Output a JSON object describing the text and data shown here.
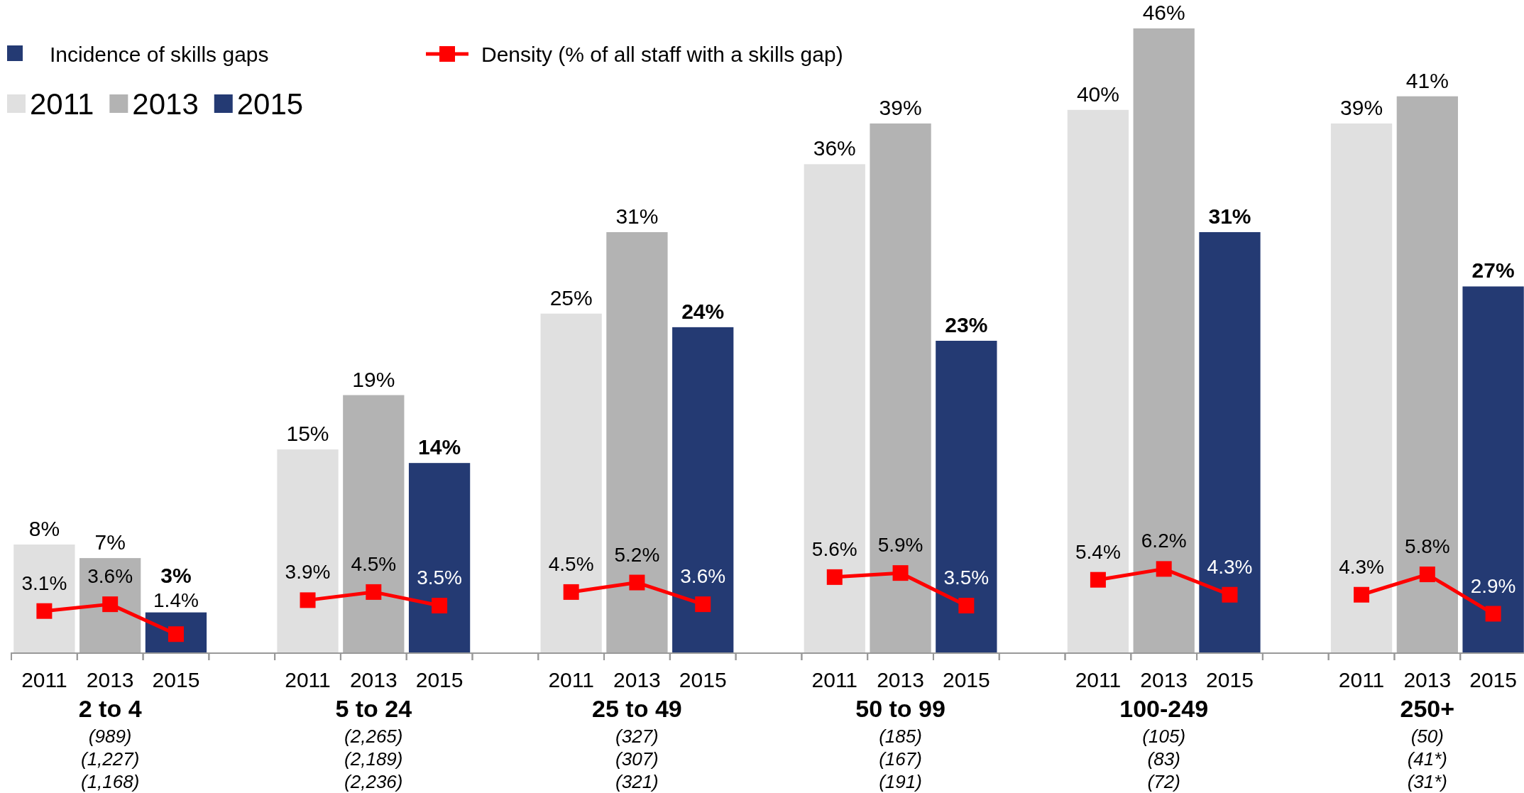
{
  "chart_data": {
    "type": "bar",
    "legend": "top left",
    "legend_title": "Incidence of skills gaps",
    "marker": "square",
    "line_style": "solid",
    "categories": [
      "2011",
      "2013",
      "2015",
      null,
      "2011",
      "2013",
      "2015",
      null,
      "2011",
      "2013",
      "2015",
      null,
      "2011",
      "2013",
      "2015",
      null,
      "2011",
      "2013",
      "2015",
      null,
      "2011",
      "2013",
      "2015"
    ],
    "series": [
      {
        "name": "2011",
        "color": "#e0e0e0",
        "values": [
          8,
          null,
          null,
          null,
          15,
          null,
          null,
          null,
          25,
          null,
          null,
          null,
          36,
          null,
          null,
          null,
          40,
          null,
          null,
          null,
          39,
          null,
          null
        ],
        "value_labels": [
          "8%",
          null,
          null,
          null,
          "15%",
          null,
          null,
          null,
          "25%",
          null,
          null,
          null,
          "36%",
          null,
          null,
          null,
          "40%",
          null,
          null,
          null,
          "39%",
          null,
          null
        ]
      },
      {
        "name": "2013",
        "color": "#b3b3b3",
        "values": [
          null,
          7,
          null,
          null,
          null,
          19,
          null,
          null,
          null,
          31,
          null,
          null,
          null,
          39,
          null,
          null,
          null,
          46,
          null,
          null,
          null,
          41,
          null
        ],
        "value_labels": [
          null,
          "7%",
          null,
          null,
          null,
          "19%",
          null,
          null,
          null,
          "31%",
          null,
          null,
          null,
          "39%",
          null,
          null,
          null,
          "46%",
          null,
          null,
          null,
          "41%",
          null
        ]
      },
      {
        "name": "2015",
        "color": "#243a73",
        "values": [
          null,
          null,
          3,
          null,
          null,
          null,
          14,
          null,
          null,
          null,
          24,
          null,
          null,
          null,
          23,
          null,
          null,
          null,
          31,
          null,
          null,
          null,
          27
        ],
        "value_labels": [
          null,
          null,
          "3%",
          null,
          null,
          null,
          "14%",
          null,
          null,
          null,
          "24%",
          null,
          null,
          null,
          "23%",
          null,
          null,
          null,
          "31%",
          null,
          null,
          null,
          "27%"
        ]
      },
      {
        "name": "Density (% of all staff with a skills gap)",
        "type": "line",
        "color": "#ff0000",
        "values": [
          3.1,
          3.6,
          1.4,
          null,
          3.9,
          4.5,
          3.5,
          null,
          4.5,
          5.2,
          3.6,
          null,
          5.6,
          5.9,
          3.5,
          null,
          5.4,
          6.2,
          4.3,
          null,
          4.3,
          5.8,
          2.9
        ],
        "value_labels": [
          "3.1%",
          "3.6%",
          "1.4%",
          null,
          "3.9%",
          "4.5%",
          "3.5%",
          null,
          "4.5%",
          "5.2%",
          "3.6%",
          null,
          "5.6%",
          "5.9%",
          "3.5%",
          null,
          "5.4%",
          "6.2%",
          "4.3%",
          null,
          "4.3%",
          "5.8%",
          "2.9%"
        ]
      }
    ],
    "annotations": [
      "2 to 4",
      "(989)",
      "(1,227)",
      "(1,168)",
      "5 to 24",
      "(2,265)",
      "(2,189)",
      "(2,236)",
      "25 to 49",
      "(327)",
      "(307)",
      "(321)",
      "50 to 99",
      "(185)",
      "(167)",
      "(191)",
      "100-249",
      "(105)",
      "(83)",
      "(72)",
      "250+",
      "(50)",
      "(41*)",
      "(31*)"
    ]
  }
}
